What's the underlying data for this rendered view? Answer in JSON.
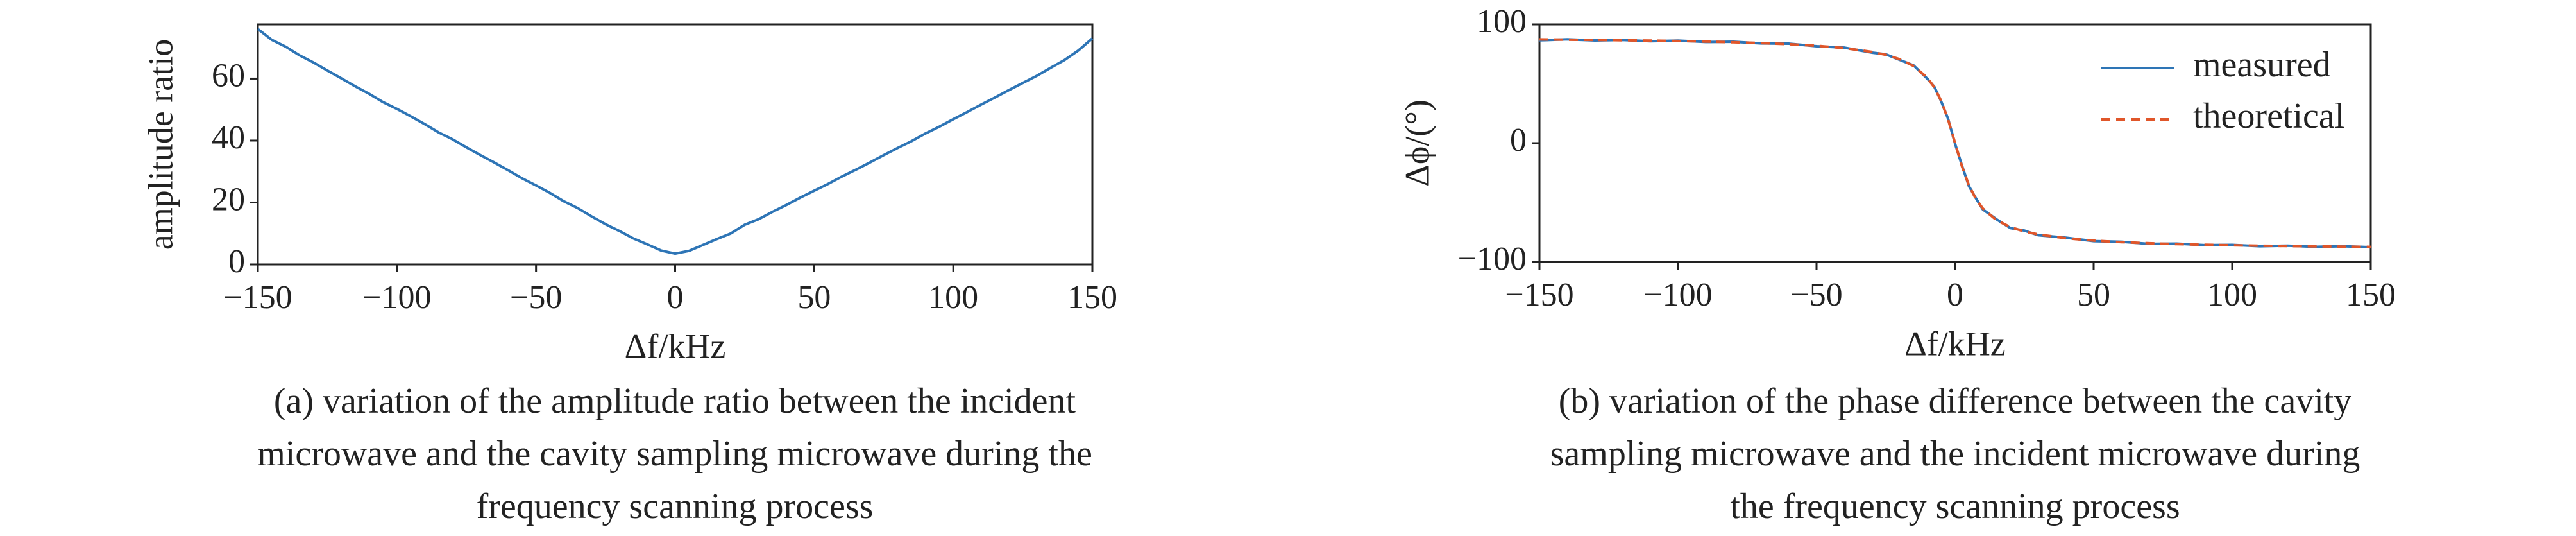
{
  "chart_data": [
    {
      "type": "line",
      "ylabel": "amplitude ratio",
      "xlabel": "Δf/kHz",
      "caption": [
        "(a) variation of the amplitude ratio between the incident",
        "microwave and the cavity sampling microwave during the",
        "frequency scanning process"
      ],
      "x": [
        -150,
        -145,
        -140,
        -135,
        -130,
        -125,
        -120,
        -115,
        -110,
        -105,
        -100,
        -95,
        -90,
        -85,
        -80,
        -75,
        -70,
        -65,
        -60,
        -55,
        -50,
        -45,
        -40,
        -35,
        -30,
        -25,
        -20,
        -15,
        -10,
        -5,
        0,
        5,
        10,
        15,
        20,
        25,
        30,
        35,
        40,
        45,
        50,
        55,
        60,
        65,
        70,
        75,
        80,
        85,
        90,
        95,
        100,
        105,
        110,
        115,
        120,
        125,
        130,
        135,
        140,
        145,
        150
      ],
      "values": [
        76,
        72.5,
        70.3,
        67.5,
        65.2,
        62.6,
        60.1,
        57.5,
        55.1,
        52.4,
        50.2,
        47.8,
        45.3,
        42.6,
        40.4,
        37.8,
        35.3,
        32.9,
        30.4,
        27.8,
        25.5,
        23.1,
        20.4,
        18.2,
        15.5,
        13.0,
        10.8,
        8.4,
        6.5,
        4.5,
        3.5,
        4.4,
        6.3,
        8.2,
        10.0,
        12.8,
        14.6,
        17.0,
        19.2,
        21.6,
        23.8,
        26.0,
        28.4,
        30.6,
        32.9,
        35.3,
        37.6,
        39.8,
        42.3,
        44.5,
        46.9,
        49.2,
        51.6,
        53.9,
        56.3,
        58.6,
        60.9,
        63.5,
        66.0,
        69.1,
        73.0
      ],
      "color": "#2e75b6",
      "xlim": [
        -150,
        150
      ],
      "xticks": [
        {
          "value": -150,
          "label": "−150"
        },
        {
          "value": -100,
          "label": "−100"
        },
        {
          "value": -50,
          "label": "−50"
        },
        0,
        50,
        100,
        150
      ],
      "ylim": [
        0,
        77.5
      ],
      "yticks": [
        0,
        20,
        40,
        60
      ]
    },
    {
      "type": "line",
      "ylabel": "Δϕ/(°)",
      "xlabel": "Δf/kHz",
      "caption": [
        "(b) variation of the phase difference between the cavity",
        "sampling microwave and the incident microwave during",
        "the frequency scanning process"
      ],
      "x": [
        -150,
        -140,
        -130,
        -120,
        -110,
        -100,
        -90,
        -80,
        -70,
        -60,
        -50,
        -40,
        -30,
        -25,
        -20,
        -15,
        -10,
        -7.5,
        -5,
        -2.5,
        0,
        2.5,
        5,
        7.5,
        10,
        15,
        20,
        25,
        30,
        40,
        50,
        60,
        70,
        80,
        90,
        100,
        110,
        120,
        130,
        140,
        150
      ],
      "series": [
        {
          "name": "measured",
          "color": "#2e75b6",
          "dash": false,
          "values": [
            86.6,
            87.4,
            86.5,
            86.9,
            85.8,
            86.3,
            85.2,
            85.4,
            84.0,
            83.8,
            81.6,
            80.5,
            76.2,
            74.8,
            70.1,
            65.5,
            54.2,
            47.5,
            35.0,
            20.3,
            -0.6,
            -19.0,
            -36.2,
            -46.3,
            -55.8,
            -64.2,
            -71.5,
            -73.6,
            -77.5,
            -79.6,
            -82.5,
            -83.0,
            -84.8,
            -84.6,
            -85.9,
            -85.7,
            -86.8,
            -86.3,
            -87.3,
            -86.8,
            -87.6
          ]
        },
        {
          "name": "theoretical",
          "color": "#e0562a",
          "dash": true,
          "values": [
            87.33,
            87.14,
            86.92,
            86.66,
            86.36,
            86.0,
            85.55,
            85.0,
            84.29,
            83.35,
            82.03,
            80.07,
            76.87,
            74.36,
            70.71,
            64.98,
            55.01,
            46.97,
            35.54,
            19.65,
            0,
            -19.65,
            -35.54,
            -46.97,
            -55.01,
            -64.98,
            -70.71,
            -74.36,
            -76.87,
            -80.07,
            -82.03,
            -83.35,
            -84.29,
            -85.0,
            -85.55,
            -86.0,
            -86.36,
            -86.66,
            -86.92,
            -87.14,
            -87.33
          ]
        }
      ],
      "legend": "upper right",
      "xlim": [
        -150,
        150
      ],
      "xticks": [
        {
          "value": -150,
          "label": "−150"
        },
        {
          "value": -100,
          "label": "−100"
        },
        {
          "value": -50,
          "label": "−50"
        },
        0,
        50,
        100,
        150
      ],
      "ylim": [
        -100,
        100
      ],
      "yticks": [
        {
          "value": -100,
          "label": "−100"
        },
        0,
        100
      ]
    }
  ]
}
